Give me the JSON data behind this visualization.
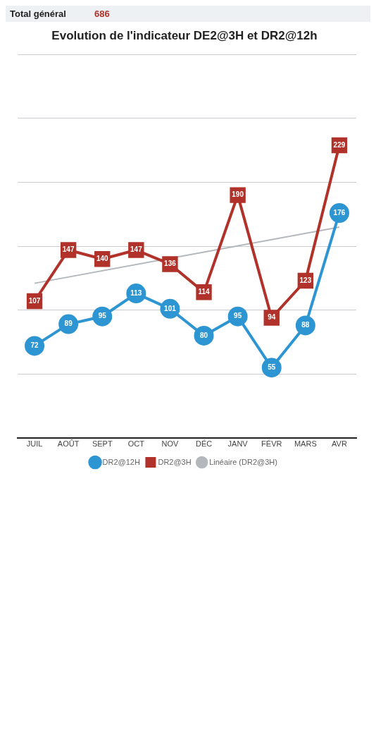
{
  "chart_data": {
    "type": "line",
    "title": "Evolution de l'indicateur DE2@3H et DR2@12h",
    "categories": [
      "JUIL",
      "AOÛT",
      "SEPT",
      "OCT",
      "NOV",
      "DÉC",
      "JANV",
      "FÉVR",
      "MARS",
      "AVR"
    ],
    "series": [
      {
        "name": "DR2@12H",
        "color": "#2e95d3",
        "marker": "circle",
        "values": [
          72,
          89,
          95,
          113,
          101,
          80,
          95,
          55,
          88,
          176
        ],
        "value_labels": [
          "72",
          "89",
          "95",
          "113",
          "101",
          "80",
          "95",
          "55",
          "88",
          "176"
        ]
      },
      {
        "name": "DR2@3H",
        "color": "#b0322a",
        "marker": "square",
        "values": [
          107,
          147,
          140,
          147,
          136,
          114,
          190,
          94,
          123,
          229
        ],
        "value_labels": [
          "107",
          "147",
          "140",
          "147",
          "136",
          "114",
          "190",
          "94",
          "123",
          "229"
        ]
      },
      {
        "name": "Linéaire (DR2@3H)",
        "color": "#b4b8bc",
        "marker": "none",
        "x": [
          "JUIL",
          "AVR"
        ],
        "values": [
          121,
          165
        ]
      }
    ],
    "ylim": [
      0,
      300
    ],
    "yticks": [
      {
        "value": 0,
        "label": null
      },
      {
        "value": 50,
        "label": null
      },
      {
        "value": 100,
        "label": null
      },
      {
        "value": 150,
        "label": null
      },
      {
        "value": 200,
        "label": null
      },
      {
        "value": 250,
        "label": null
      },
      {
        "value": 300,
        "label": null
      }
    ],
    "tick_labels": "x",
    "grid": "y",
    "legend": "bottom",
    "annotations": [
      "Total général",
      "686"
    ]
  }
}
